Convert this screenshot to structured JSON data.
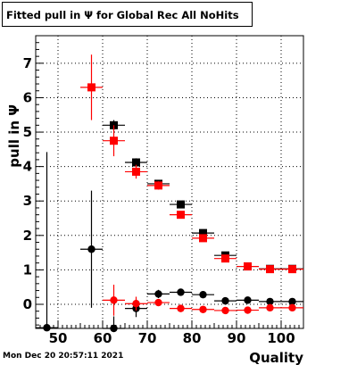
{
  "chart_data": {
    "type": "scatter",
    "title": "Fitted pull in  Ψ  for Global Rec All NoHits",
    "xlabel": "Quality",
    "ylabel": "pull in  Ψ",
    "xlim": [
      45,
      105
    ],
    "ylim": [
      -0.7,
      7.8
    ],
    "grid": true,
    "x_ticks": [
      "50",
      "60",
      "70",
      "80",
      "90",
      "100"
    ],
    "y_ticks": [
      "0",
      "1",
      "2",
      "3",
      "4",
      "5",
      "6",
      "7"
    ],
    "series": [
      {
        "marker": "square",
        "color": "#000000",
        "points": [
          {
            "x": 62.5,
            "y": 5.2,
            "xerr": 2.5,
            "yerr": 0.15
          },
          {
            "x": 67.5,
            "y": 4.12,
            "xerr": 2.5,
            "yerr": 0.12
          },
          {
            "x": 72.5,
            "y": 3.5,
            "xerr": 2.5,
            "yerr": 0.1
          },
          {
            "x": 77.5,
            "y": 2.9,
            "xerr": 2.5,
            "yerr": 0.08
          },
          {
            "x": 82.5,
            "y": 2.07,
            "xerr": 2.5,
            "yerr": 0.06
          },
          {
            "x": 87.5,
            "y": 1.42,
            "xerr": 2.5,
            "yerr": 0.05
          },
          {
            "x": 92.5,
            "y": 1.1,
            "xerr": 2.5,
            "yerr": 0.04
          },
          {
            "x": 97.5,
            "y": 1.03,
            "xerr": 2.5,
            "yerr": 0.03
          },
          {
            "x": 102.5,
            "y": 1.03,
            "xerr": 2.5,
            "yerr": 0.03
          }
        ]
      },
      {
        "marker": "square",
        "color": "#ff0000",
        "points": [
          {
            "x": 57.5,
            "y": 6.3,
            "xerr": 2.5,
            "yerr": 0.95
          },
          {
            "x": 62.5,
            "y": 4.75,
            "xerr": 2.5,
            "yerr": 0.45
          },
          {
            "x": 67.5,
            "y": 3.85,
            "xerr": 2.5,
            "yerr": 0.2
          },
          {
            "x": 72.5,
            "y": 3.45,
            "xerr": 2.5,
            "yerr": 0.12
          },
          {
            "x": 77.5,
            "y": 2.6,
            "xerr": 2.5,
            "yerr": 0.08
          },
          {
            "x": 82.5,
            "y": 1.92,
            "xerr": 2.5,
            "yerr": 0.06
          },
          {
            "x": 87.5,
            "y": 1.33,
            "xerr": 2.5,
            "yerr": 0.05
          },
          {
            "x": 92.5,
            "y": 1.1,
            "xerr": 2.5,
            "yerr": 0.04
          },
          {
            "x": 97.5,
            "y": 1.02,
            "xerr": 2.5,
            "yerr": 0.03
          },
          {
            "x": 102.5,
            "y": 1.02,
            "xerr": 2.5,
            "yerr": 0.03
          }
        ]
      },
      {
        "marker": "circle",
        "color": "#000000",
        "points": [
          {
            "x": 47.5,
            "y": -0.68,
            "xerr": 2.5,
            "yerr": 5.1
          },
          {
            "x": 57.5,
            "y": 1.6,
            "xerr": 2.5,
            "yerr": 1.7
          },
          {
            "x": 62.5,
            "y": -0.7,
            "xerr": 2.5,
            "yerr": 0.35
          },
          {
            "x": 67.5,
            "y": -0.12,
            "xerr": 2.5,
            "yerr": 0.25
          },
          {
            "x": 72.5,
            "y": 0.3,
            "xerr": 2.5,
            "yerr": 0.12
          },
          {
            "x": 77.5,
            "y": 0.35,
            "xerr": 2.5,
            "yerr": 0.08
          },
          {
            "x": 82.5,
            "y": 0.28,
            "xerr": 2.5,
            "yerr": 0.05
          },
          {
            "x": 87.5,
            "y": 0.1,
            "xerr": 2.5,
            "yerr": 0.04
          },
          {
            "x": 92.5,
            "y": 0.12,
            "xerr": 2.5,
            "yerr": 0.03
          },
          {
            "x": 97.5,
            "y": 0.08,
            "xerr": 2.5,
            "yerr": 0.03
          },
          {
            "x": 102.5,
            "y": 0.08,
            "xerr": 2.5,
            "yerr": 0.03
          }
        ]
      },
      {
        "marker": "circle",
        "color": "#ff0000",
        "points": [
          {
            "x": 62.5,
            "y": 0.12,
            "xerr": 2.5,
            "yerr": 0.45
          },
          {
            "x": 67.5,
            "y": 0.02,
            "xerr": 2.5,
            "yerr": 0.2
          },
          {
            "x": 72.5,
            "y": 0.05,
            "xerr": 2.5,
            "yerr": 0.1
          },
          {
            "x": 77.5,
            "y": -0.12,
            "xerr": 2.5,
            "yerr": 0.07
          },
          {
            "x": 82.5,
            "y": -0.15,
            "xerr": 2.5,
            "yerr": 0.05
          },
          {
            "x": 87.5,
            "y": -0.18,
            "xerr": 2.5,
            "yerr": 0.04
          },
          {
            "x": 92.5,
            "y": -0.17,
            "xerr": 2.5,
            "yerr": 0.03
          },
          {
            "x": 97.5,
            "y": -0.1,
            "xerr": 2.5,
            "yerr": 0.03
          },
          {
            "x": 102.5,
            "y": -0.1,
            "xerr": 2.5,
            "yerr": 0.03
          }
        ]
      }
    ]
  },
  "footer": {
    "timestamp": "Mon Dec 20 20:57:11 2021"
  }
}
